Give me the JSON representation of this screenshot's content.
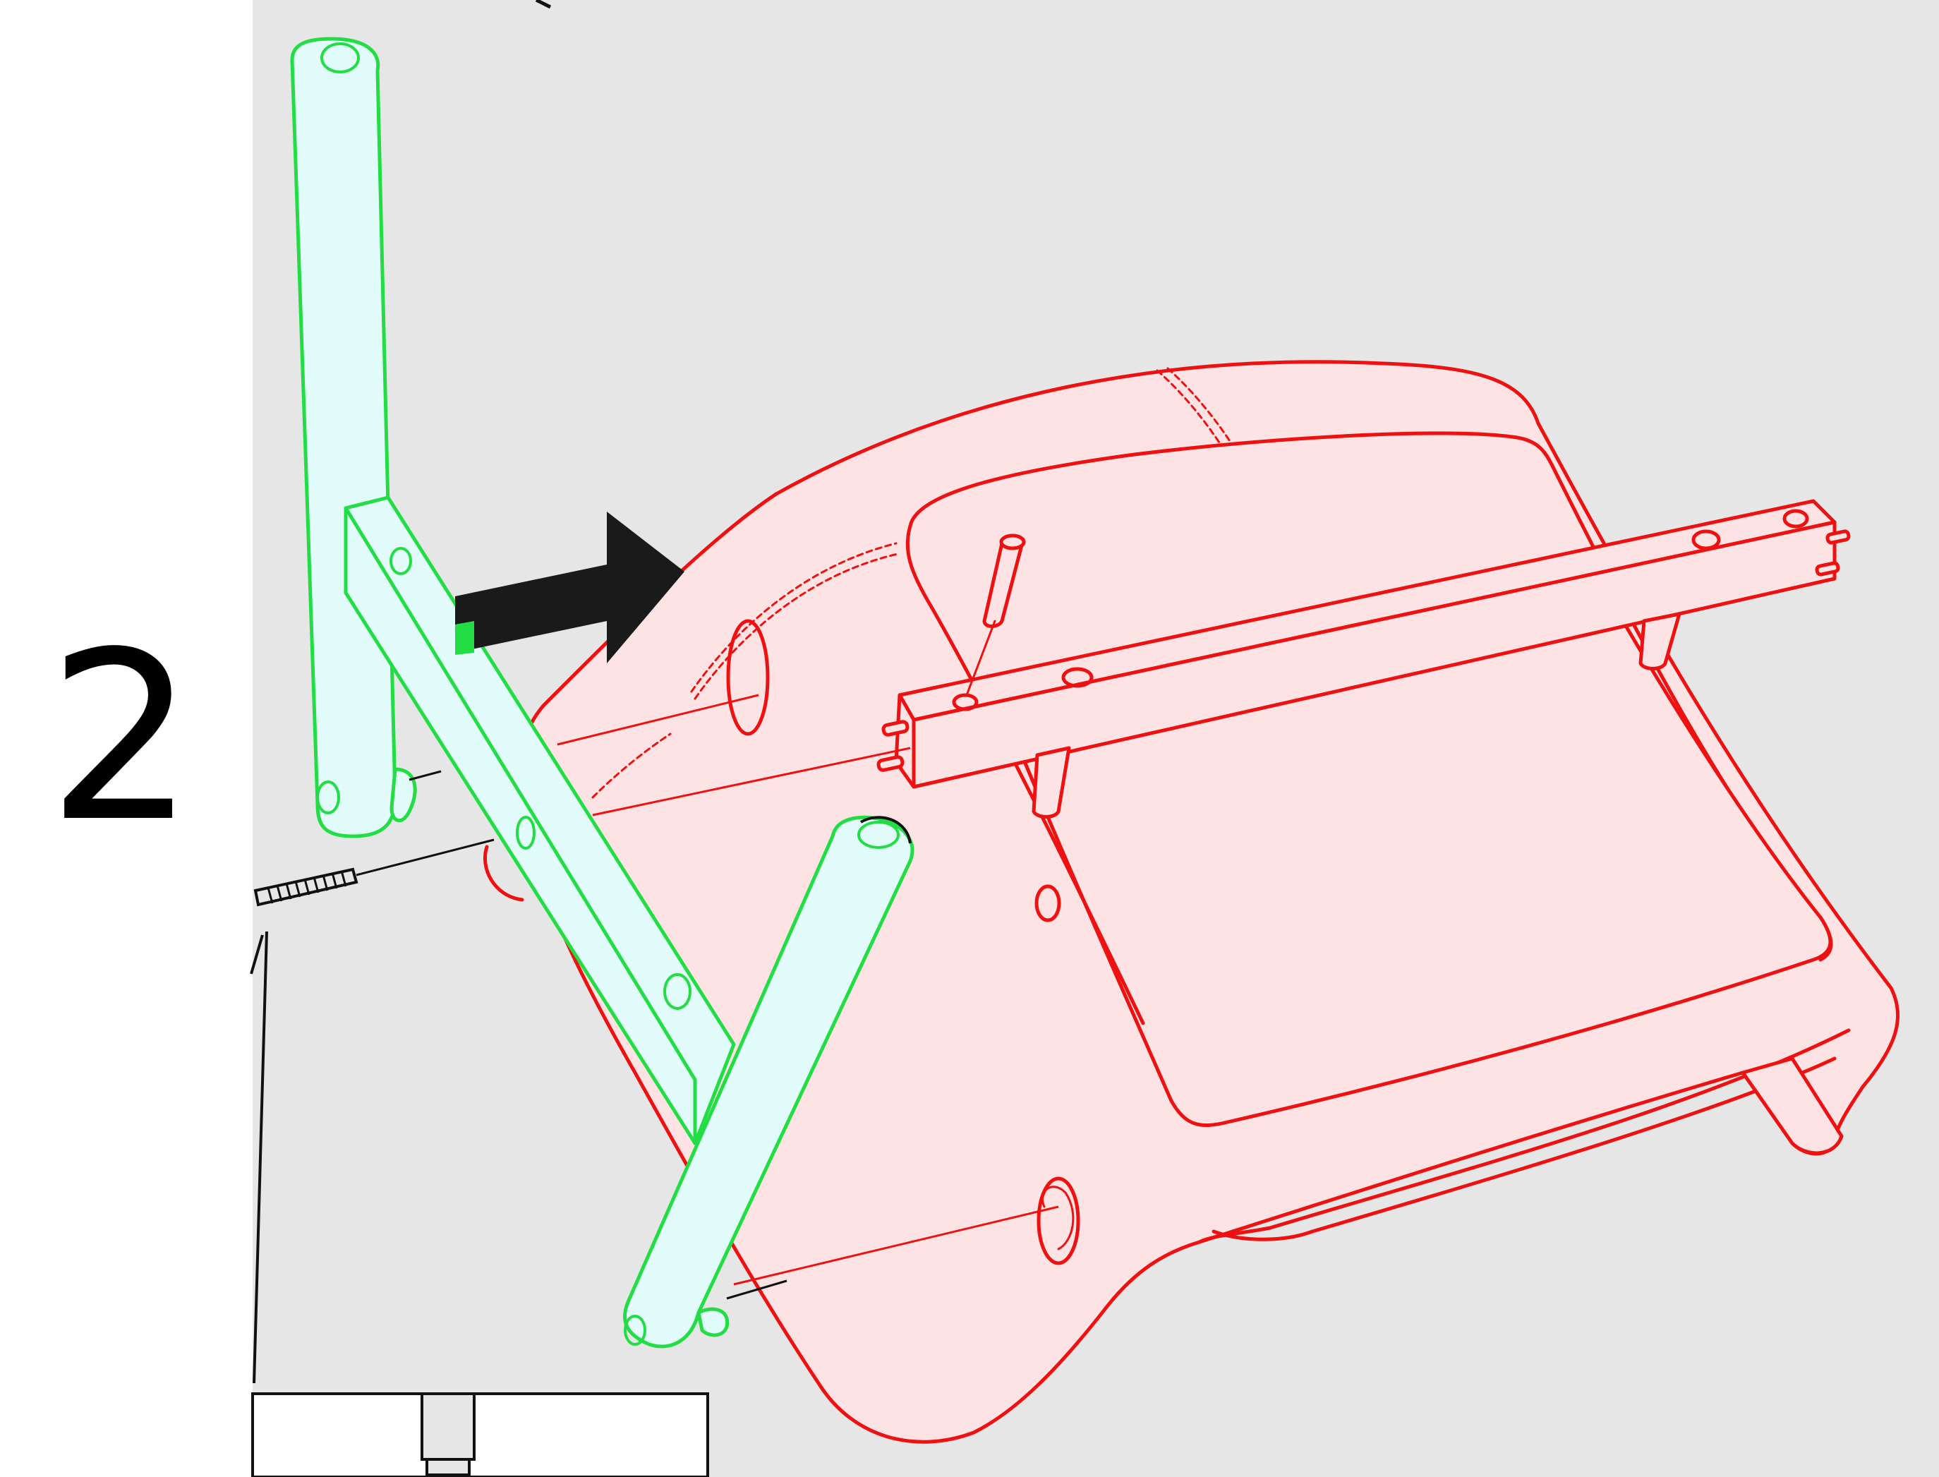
{
  "step": {
    "number": "2"
  },
  "colors": {
    "background": "#e6e6e6",
    "new_part_stroke": "#22dd44",
    "new_part_fill": "#e2fbfb",
    "existing_part_stroke": "#ee1111",
    "existing_part_fill": "#fde3e3",
    "arrow": "#1a1a1a"
  },
  "icons": {
    "direction_arrow": "right-arrow-icon",
    "screw": "screw-icon",
    "dowel": "dowel-icon"
  }
}
